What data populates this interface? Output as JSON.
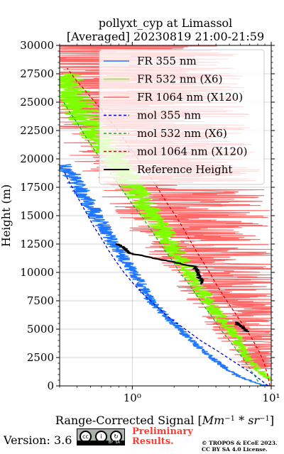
{
  "chart_data": {
    "type": "line",
    "title": "pollyxt_cyp at Limassol",
    "subtitle": "[Averaged] 20230819 21:00-21:59",
    "xlabel": "Range-Corrected Signal [Mm⁻¹ * sr⁻¹]",
    "ylabel": "Height (m)",
    "xscale": "log",
    "xlim": [
      0.3,
      10
    ],
    "ylim": [
      0,
      30000
    ],
    "x_ticks": [
      {
        "value": 1,
        "label": "10⁰"
      },
      {
        "value": 10,
        "label": "10¹"
      }
    ],
    "y_ticks": [
      0,
      2500,
      5000,
      7500,
      10000,
      12500,
      15000,
      17500,
      20000,
      22500,
      25000,
      27500,
      30000
    ],
    "grid": true,
    "legend_position": "top-right",
    "series": [
      {
        "name": "FR 355 nm",
        "color": "#1f77ff",
        "style": "noisy",
        "points": [
          [
            10,
            0
          ],
          [
            8.5,
            100
          ],
          [
            7.2,
            400
          ],
          [
            5.5,
            1000
          ],
          [
            4.2,
            2000
          ],
          [
            3.3,
            3000
          ],
          [
            2.4,
            4500
          ],
          [
            1.8,
            6000
          ],
          [
            1.35,
            7500
          ],
          [
            1.15,
            9000
          ],
          [
            0.95,
            10500
          ],
          [
            0.78,
            12000
          ],
          [
            0.62,
            14000
          ],
          [
            0.52,
            15500
          ],
          [
            0.44,
            17000
          ],
          [
            0.37,
            18500
          ],
          [
            0.31,
            19500
          ]
        ]
      },
      {
        "name": "FR 532 nm (X6)",
        "color": "#7fff00",
        "style": "noisy",
        "points": [
          [
            10,
            500
          ],
          [
            8.5,
            1200
          ],
          [
            7.2,
            2000
          ],
          [
            6.3,
            3000
          ],
          [
            5.5,
            4500
          ],
          [
            4.3,
            6000
          ],
          [
            3.5,
            7500
          ],
          [
            2.9,
            9000
          ],
          [
            2.4,
            10500
          ],
          [
            2.0,
            12000
          ],
          [
            1.7,
            13500
          ],
          [
            1.4,
            15000
          ],
          [
            1.15,
            16500
          ],
          [
            0.95,
            18000
          ],
          [
            0.8,
            19500
          ],
          [
            0.65,
            21000
          ],
          [
            0.52,
            22500
          ],
          [
            0.44,
            24000
          ],
          [
            0.38,
            25500
          ],
          [
            0.34,
            26500
          ],
          [
            0.31,
            27500
          ]
        ]
      },
      {
        "name": "FR 1064 nm (X120)",
        "color": "#ff6666",
        "style": "noisy",
        "points": [
          [
            9.5,
            1500
          ],
          [
            8.5,
            3000
          ],
          [
            7.5,
            4500
          ],
          [
            6.5,
            6000
          ],
          [
            5.5,
            7500
          ],
          [
            4.8,
            9000
          ],
          [
            4.2,
            10500
          ],
          [
            3.7,
            12000
          ],
          [
            3.2,
            13500
          ],
          [
            2.8,
            15000
          ],
          [
            2.4,
            16500
          ],
          [
            2.1,
            18000
          ],
          [
            1.85,
            19500
          ],
          [
            1.6,
            21000
          ],
          [
            1.4,
            22500
          ],
          [
            1.2,
            24000
          ],
          [
            1.05,
            25500
          ],
          [
            0.9,
            27000
          ],
          [
            0.8,
            28500
          ],
          [
            0.7,
            30000
          ]
        ]
      },
      {
        "name": "mol 355 nm",
        "color": "#0000dd",
        "style": "dashed",
        "points": [
          [
            9.5,
            0
          ],
          [
            7.5,
            1000
          ],
          [
            5.6,
            2000
          ],
          [
            4.2,
            3000
          ],
          [
            3.1,
            4000
          ],
          [
            2.4,
            5000
          ],
          [
            1.85,
            6000
          ],
          [
            1.5,
            7000
          ],
          [
            1.22,
            8000
          ],
          [
            1.02,
            9000
          ],
          [
            0.87,
            10000
          ],
          [
            0.76,
            11000
          ],
          [
            0.67,
            12000
          ],
          [
            0.6,
            13000
          ],
          [
            0.53,
            14000
          ],
          [
            0.48,
            15000
          ],
          [
            0.43,
            16000
          ],
          [
            0.39,
            17000
          ],
          [
            0.35,
            18000
          ],
          [
            0.32,
            19000
          ]
        ]
      },
      {
        "name": "mol 532 nm (X6)",
        "color": "#22aa22",
        "style": "dashed",
        "points": [
          [
            8.4,
            0
          ],
          [
            7.5,
            1000
          ],
          [
            6.6,
            2000
          ],
          [
            5.8,
            3000
          ],
          [
            5.0,
            4000
          ],
          [
            4.3,
            5000
          ],
          [
            3.8,
            6000
          ],
          [
            3.3,
            7000
          ],
          [
            2.9,
            8000
          ],
          [
            2.55,
            9000
          ],
          [
            2.2,
            10000
          ],
          [
            1.95,
            11000
          ],
          [
            1.7,
            12000
          ],
          [
            1.5,
            13000
          ],
          [
            1.32,
            14000
          ],
          [
            1.16,
            15000
          ],
          [
            1.0,
            16000
          ],
          [
            0.88,
            17000
          ],
          [
            0.77,
            18000
          ],
          [
            0.67,
            19000
          ],
          [
            0.59,
            20000
          ],
          [
            0.52,
            21000
          ],
          [
            0.46,
            22000
          ],
          [
            0.41,
            23000
          ],
          [
            0.36,
            24000
          ],
          [
            0.32,
            25000
          ]
        ]
      },
      {
        "name": "mol 1064 nm (X120)",
        "color": "#dd0000",
        "style": "dashed",
        "points": [
          [
            9.8,
            0
          ],
          [
            9.4,
            1000
          ],
          [
            8.9,
            2000
          ],
          [
            8.2,
            3000
          ],
          [
            7.4,
            4000
          ],
          [
            6.6,
            5000
          ],
          [
            5.8,
            6000
          ],
          [
            5.1,
            7000
          ],
          [
            4.5,
            8000
          ],
          [
            4.0,
            9000
          ],
          [
            3.6,
            10000
          ],
          [
            3.2,
            11000
          ],
          [
            2.85,
            12000
          ],
          [
            2.55,
            13000
          ],
          [
            2.3,
            14000
          ],
          [
            2.05,
            15000
          ],
          [
            1.8,
            16000
          ],
          [
            1.6,
            17000
          ],
          [
            1.42,
            18000
          ],
          [
            1.25,
            19000
          ],
          [
            1.1,
            20000
          ],
          [
            0.96,
            21000
          ],
          [
            0.84,
            22000
          ],
          [
            0.73,
            23000
          ],
          [
            0.63,
            24000
          ],
          [
            0.54,
            25000
          ],
          [
            0.46,
            26000
          ],
          [
            0.39,
            27000
          ],
          [
            0.34,
            28000
          ]
        ]
      },
      {
        "name": "Reference Height",
        "color": "#000000",
        "style": "reference",
        "points": [
          [
            0.78,
            12500
          ],
          [
            0.84,
            12300
          ],
          [
            0.9,
            12000
          ],
          [
            0.95,
            11700
          ],
          [
            2.85,
            10500
          ],
          [
            3.0,
            9700
          ],
          [
            3.2,
            9000
          ],
          [
            5.6,
            5600
          ],
          [
            6.2,
            5200
          ],
          [
            6.7,
            4800
          ]
        ]
      }
    ]
  },
  "footer": {
    "version": "Version: 3.6",
    "license_badge": {
      "line1": "BY",
      "line2": "SA"
    },
    "preliminary_line1": "Preliminary",
    "preliminary_line2": "Results.",
    "copyright_line1": "© TROPOS & ECoE 2023.",
    "copyright_line2": "CC BY SA 4.0 License."
  }
}
